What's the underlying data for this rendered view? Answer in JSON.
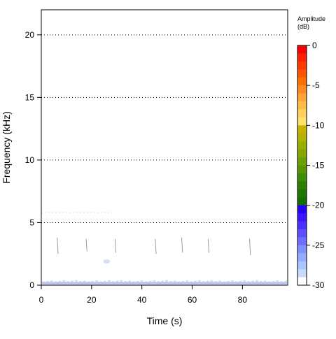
{
  "chart_data": {
    "type": "heatmap",
    "xlabel": "Time (s)",
    "ylabel": "Frequency (kHz)",
    "xlim": [
      0,
      98
    ],
    "ylim": [
      0,
      22
    ],
    "x_ticks": [
      0,
      20,
      40,
      60,
      80
    ],
    "y_ticks": [
      0,
      5,
      10,
      15,
      20
    ],
    "grid": "dotted horizontal lines at y ticks",
    "calls": [
      {
        "t": 6.5,
        "f_top": 3.8,
        "f_bottom": 2.5
      },
      {
        "t": 18.0,
        "f_top": 3.7,
        "f_bottom": 2.7
      },
      {
        "t": 29.5,
        "f_top": 3.7,
        "f_bottom": 2.6
      },
      {
        "t": 45.5,
        "f_top": 3.7,
        "f_bottom": 2.5
      },
      {
        "t": 56.0,
        "f_top": 3.8,
        "f_bottom": 2.6
      },
      {
        "t": 66.5,
        "f_top": 3.7,
        "f_bottom": 2.6
      },
      {
        "t": 83.0,
        "f_top": 3.7,
        "f_bottom": 2.4
      }
    ],
    "faint_band": {
      "f": 5.8,
      "t_start": 0,
      "t_end": 28
    },
    "faint_blob": {
      "t": 26,
      "f": 1.9
    },
    "low_band": {
      "f_min": 0,
      "f_max": 0.25
    },
    "colorbar": {
      "title": "Amplitude",
      "subtitle": "(dB)",
      "min": -30,
      "max": 0,
      "ticks": [
        0,
        -5,
        -10,
        -15,
        -20,
        -25,
        -30
      ],
      "colors_top_to_bottom": [
        "#ff0000",
        "#ff2000",
        "#ff3a00",
        "#ff5500",
        "#ff7000",
        "#ff8a20",
        "#ffa535",
        "#ffbb48",
        "#ffd060",
        "#ffe070",
        "#c8b400",
        "#b4b400",
        "#9ab000",
        "#84a800",
        "#6ea000",
        "#589600",
        "#428c00",
        "#2e8000",
        "#1e7800",
        "#126e00",
        "#2800ff",
        "#3a18ff",
        "#4c30ff",
        "#5e50ff",
        "#6e70ff",
        "#8090ff",
        "#94acff",
        "#aac4ff",
        "#c4daff",
        "#ffffff"
      ]
    }
  }
}
